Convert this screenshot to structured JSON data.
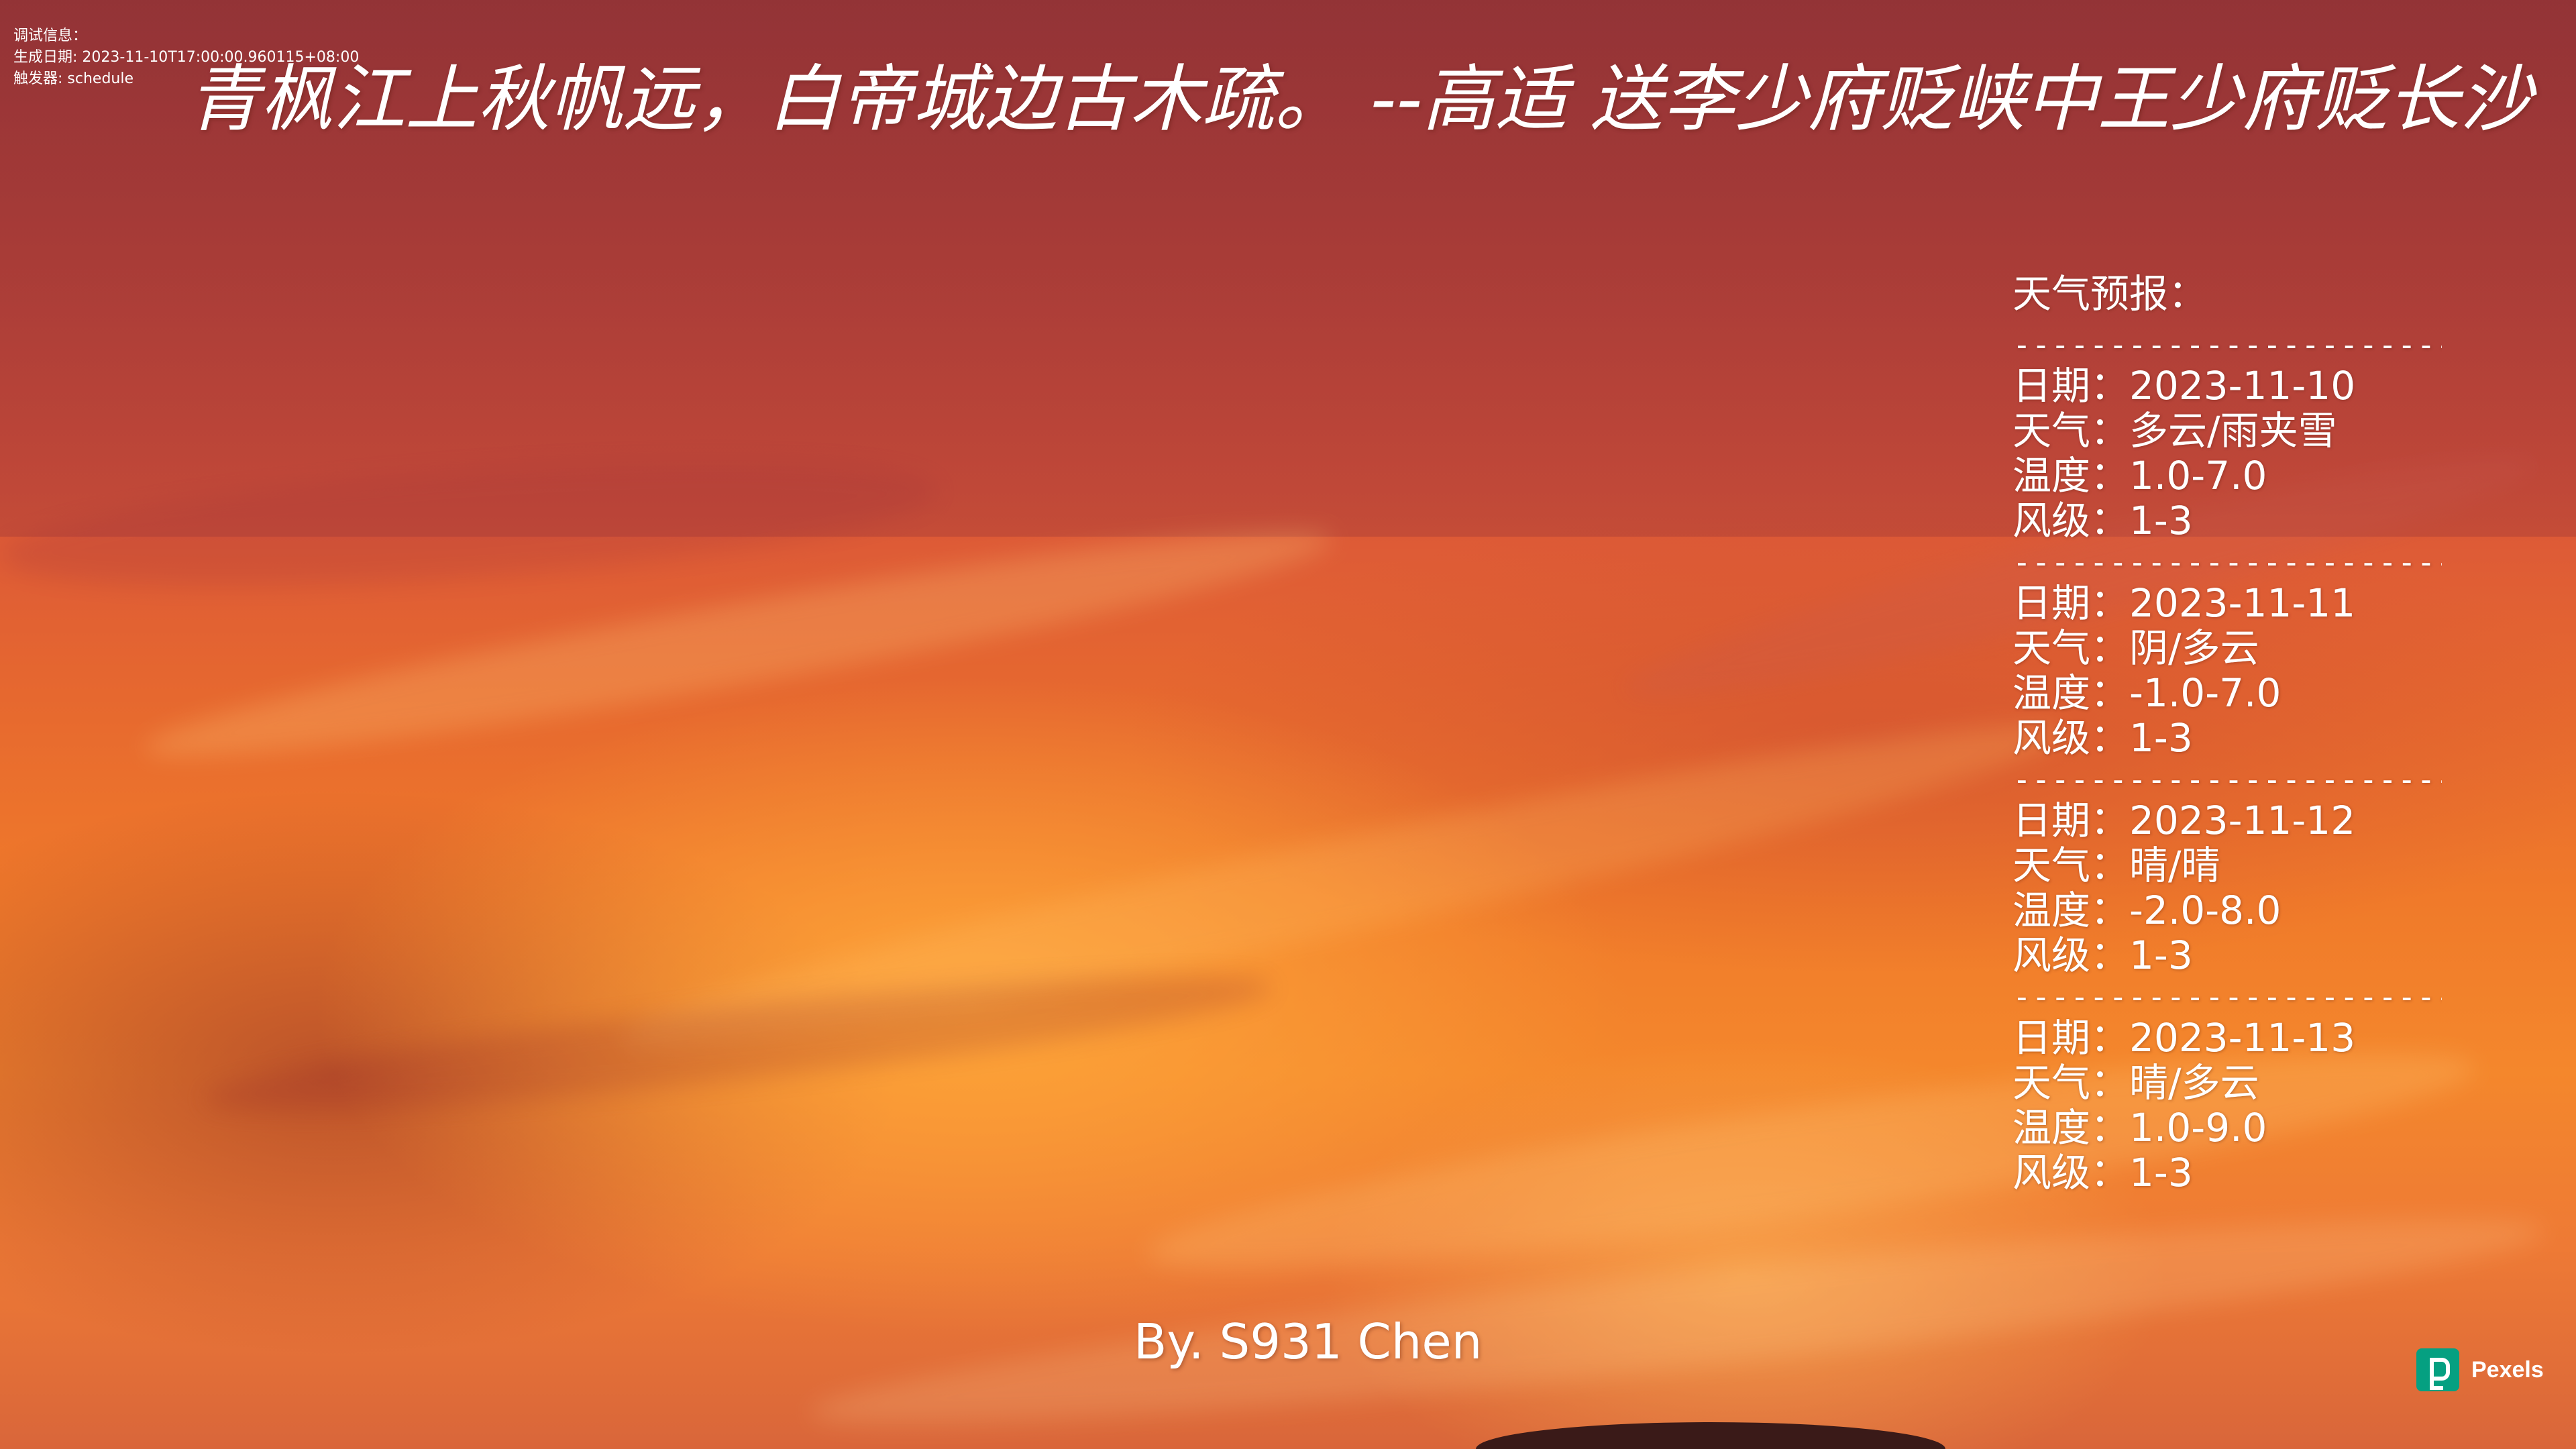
{
  "debug": {
    "title": "调试信息：",
    "generated": "生成日期: 2023-11-10T17:00:00.960115+08:00",
    "trigger": "触发器: schedule"
  },
  "poem": {
    "text": "青枫江上秋帆远，白帝城边古木疏。 --高适 送李少府贬峡中王少府贬长沙"
  },
  "weather": {
    "title": "天气预报：",
    "divider": "-----------------------------",
    "labels": {
      "date": "日期",
      "weather": "天气",
      "temp": "温度",
      "wind": "风级",
      "sep": "："
    },
    "days": [
      {
        "date": "2023-11-10",
        "weather": "多云/雨夹雪",
        "temp": "1.0-7.0",
        "wind": "1-3"
      },
      {
        "date": "2023-11-11",
        "weather": "阴/多云",
        "temp": "-1.0-7.0",
        "wind": "1-3"
      },
      {
        "date": "2023-11-12",
        "weather": "晴/晴",
        "temp": "-2.0-8.0",
        "wind": "1-3"
      },
      {
        "date": "2023-11-13",
        "weather": "晴/多云",
        "temp": "1.0-9.0",
        "wind": "1-3"
      }
    ]
  },
  "signature": "By. S931 Chen",
  "watermark": {
    "icon": "pexels-logo-icon",
    "text": "Pexels",
    "color": "#05a081"
  }
}
